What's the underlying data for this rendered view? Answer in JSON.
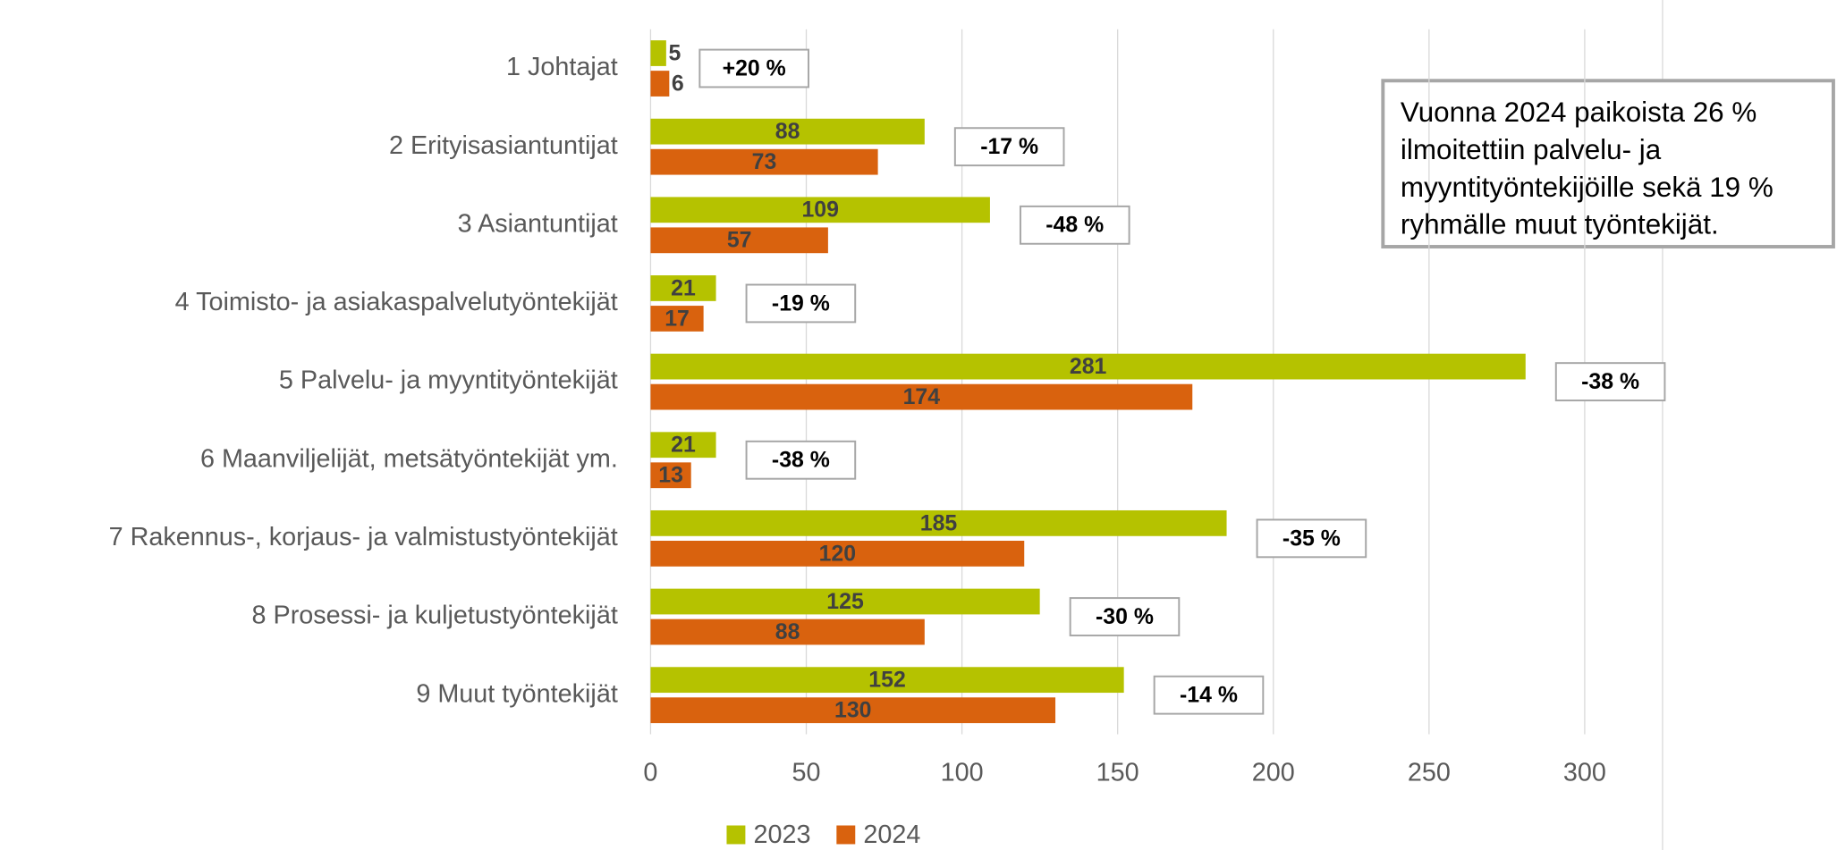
{
  "chart_data": {
    "type": "bar",
    "orientation": "horizontal",
    "categories": [
      "1 Johtajat",
      "2 Erityisasiantuntijat",
      "3 Asiantuntijat",
      "4 Toimisto- ja asiakaspalvelutyöntekijät",
      "5 Palvelu- ja myyntityöntekijät",
      "6 Maanviljelijät, metsätyöntekijät ym.",
      "7 Rakennus-, korjaus- ja valmistustyöntekijät",
      "8 Prosessi- ja kuljetustyöntekijät",
      "9 Muut työntekijät"
    ],
    "series": [
      {
        "name": "2023",
        "color": "#b5c200",
        "values": [
          5,
          88,
          109,
          21,
          281,
          21,
          185,
          125,
          152
        ]
      },
      {
        "name": "2024",
        "color": "#d9620e",
        "values": [
          6,
          73,
          57,
          17,
          174,
          13,
          120,
          88,
          130
        ]
      }
    ],
    "annotations": [
      "+20 %",
      "-17 %",
      "-48 %",
      "-19 %",
      "-38 %",
      "-38 %",
      "-35 %",
      "-30 %",
      "-14 %"
    ],
    "note": [
      "Vuonna 2024 paikoista 26 %",
      "ilmoitettiin palvelu- ja",
      "myyntityöntekijöille sekä 19 %",
      "ryhmälle muut työntekijät."
    ],
    "xlim": [
      0,
      325
    ],
    "xticks": [
      0,
      50,
      100,
      150,
      200,
      250,
      300
    ],
    "grid": true,
    "legend": "bottom"
  }
}
